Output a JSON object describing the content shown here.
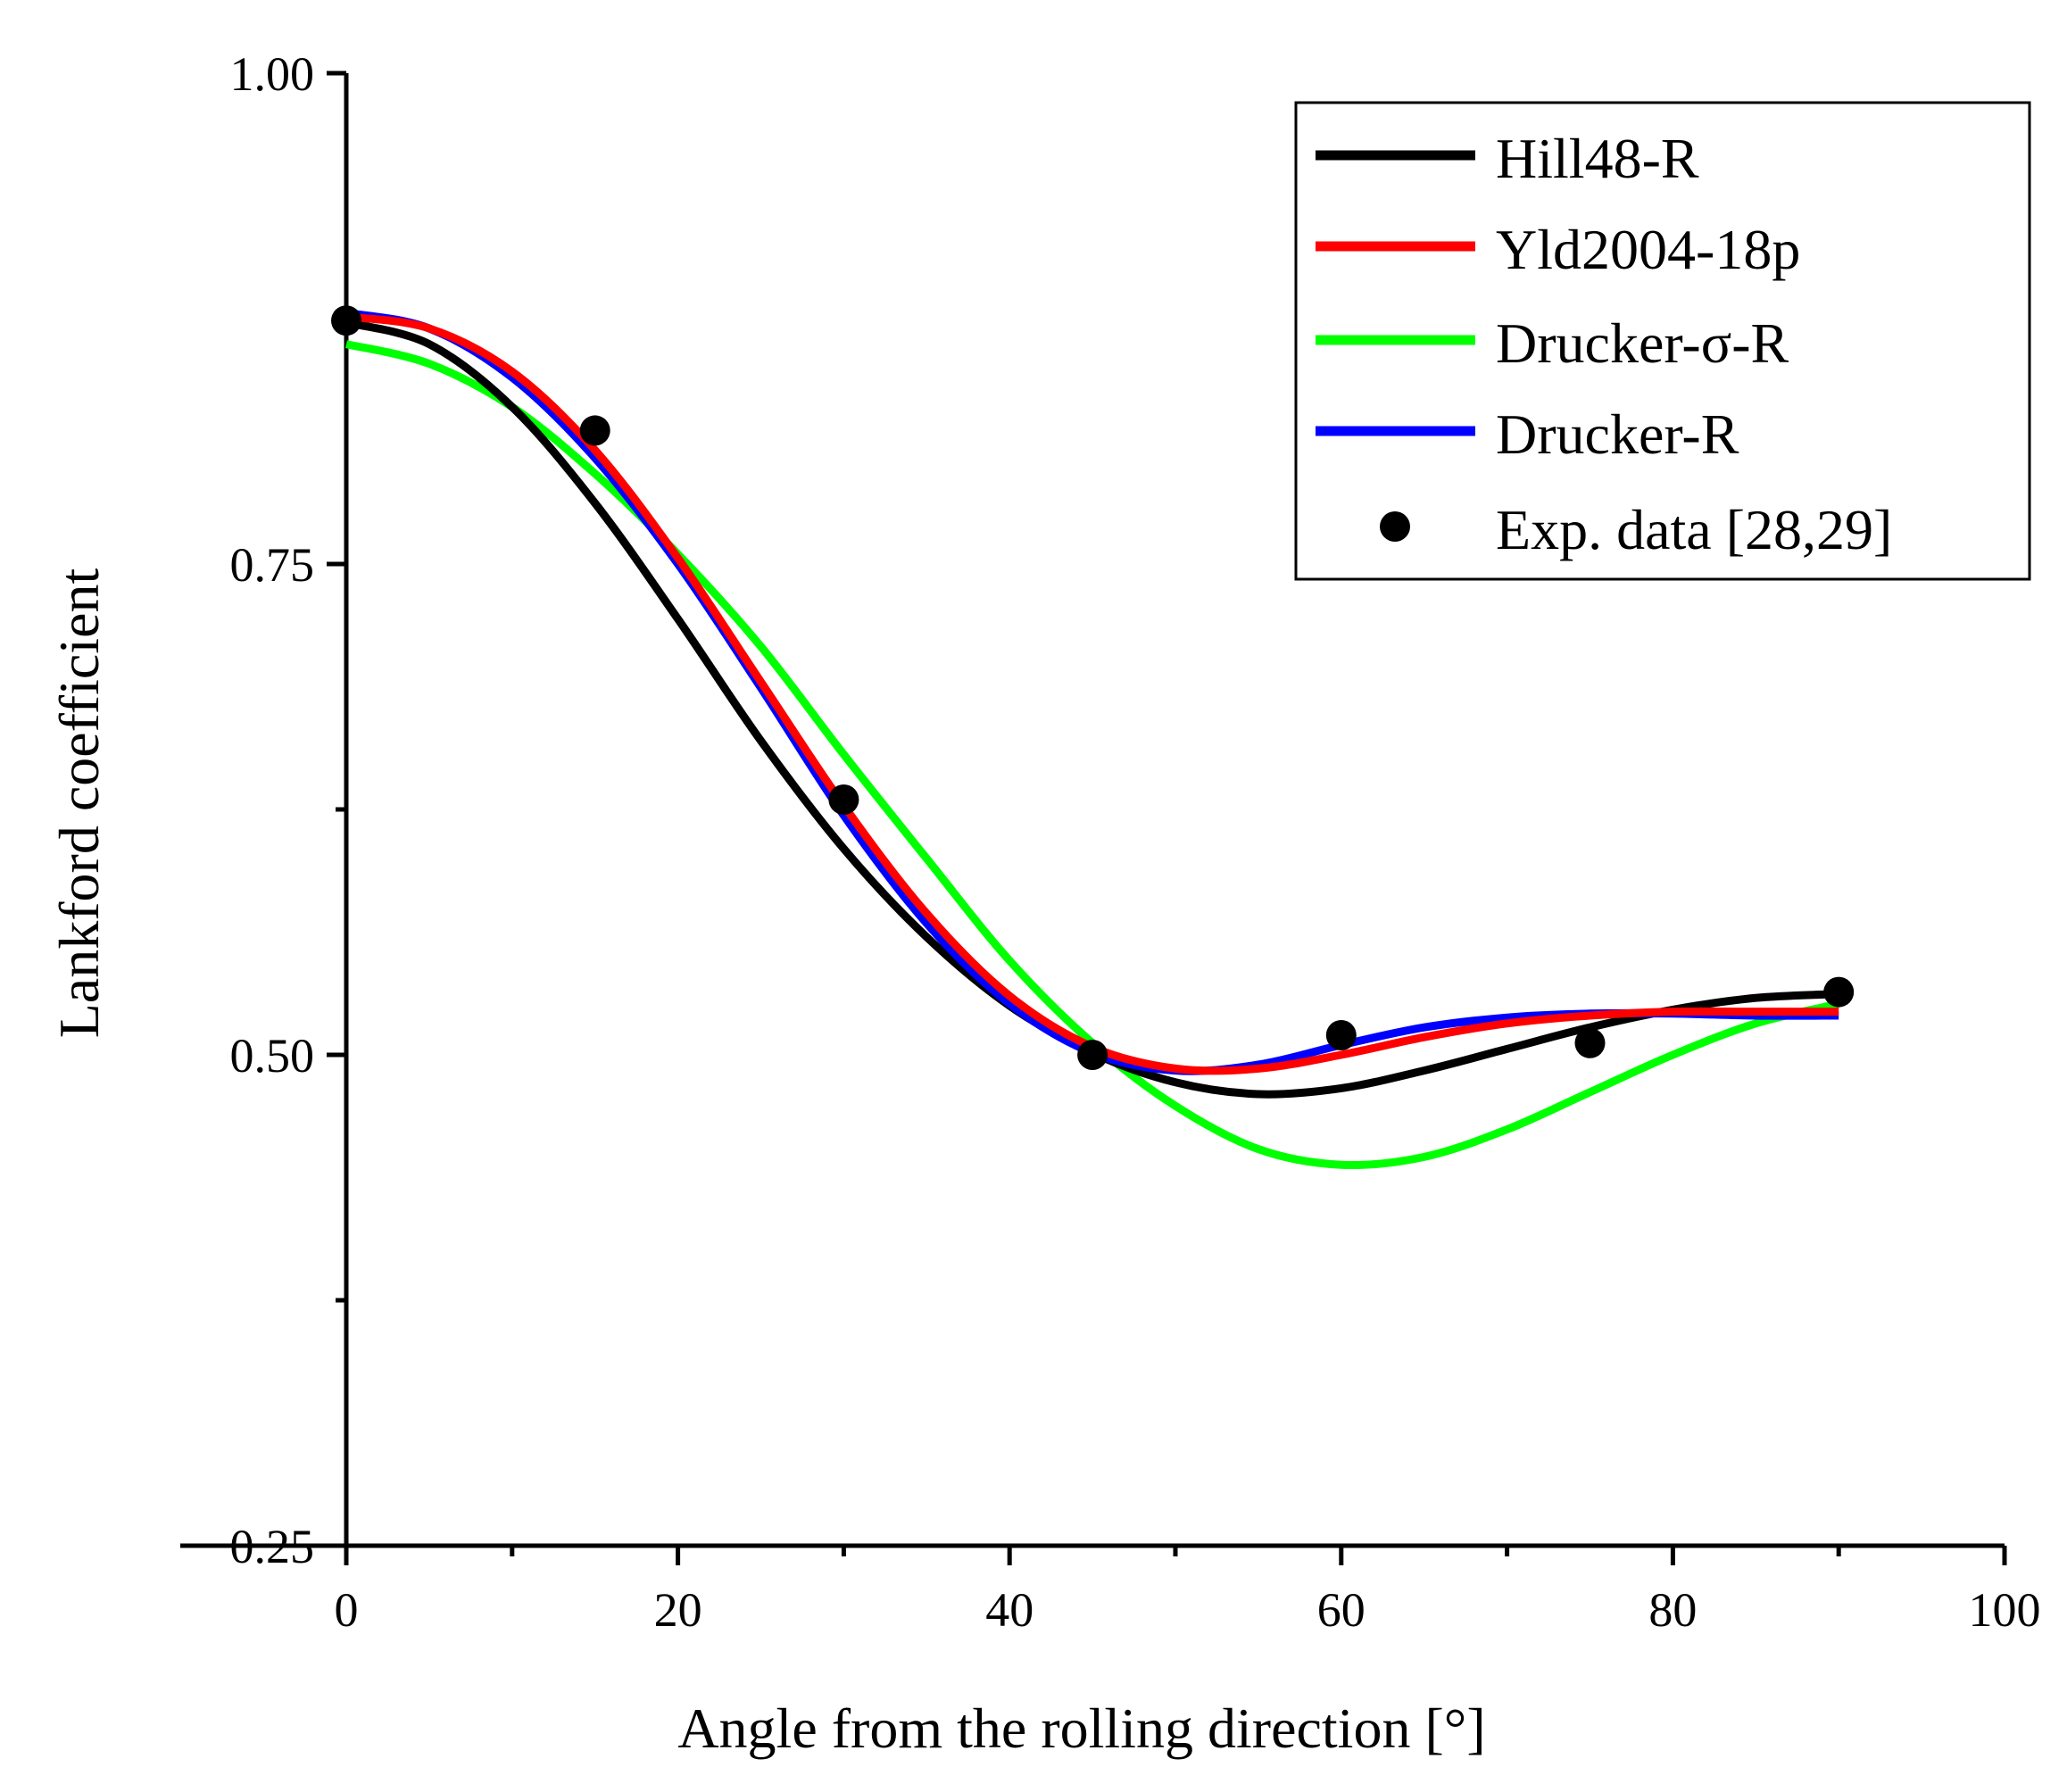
{
  "chart_data": {
    "type": "line",
    "title": "",
    "xlabel": "Angle from the rolling direction [°]",
    "ylabel": "Lankford coefficient",
    "xlim": [
      -10,
      100
    ],
    "ylim": [
      0.25,
      1.0
    ],
    "xticks": [
      0,
      20,
      40,
      60,
      80,
      100
    ],
    "xtick_labels": [
      "0",
      "20",
      "40",
      "60",
      "80",
      "100"
    ],
    "xminor_ticks": [
      10,
      30,
      50,
      70,
      90
    ],
    "yticks": [
      0.25,
      0.5,
      0.75,
      1.0
    ],
    "ytick_labels": [
      "0.25",
      "0.50",
      "0.75",
      "1.00"
    ],
    "yminor_ticks": [
      0.375,
      0.625,
      0.875
    ],
    "grid": false,
    "legend_position": "top-right",
    "series": [
      {
        "name": "Hill48-R",
        "kind": "line",
        "color": "#000000",
        "x": [
          0,
          5,
          10,
          15,
          20,
          25,
          30,
          35,
          40,
          45,
          50,
          55,
          60,
          65,
          70,
          75,
          80,
          85,
          90
        ],
        "y": [
          0.873,
          0.862,
          0.83,
          0.781,
          0.722,
          0.66,
          0.605,
          0.56,
          0.525,
          0.501,
          0.486,
          0.48,
          0.483,
          0.492,
          0.503,
          0.514,
          0.523,
          0.529,
          0.531
        ]
      },
      {
        "name": "Yld2004-18p",
        "kind": "line",
        "color": "#ff0000",
        "x": [
          0,
          5,
          10,
          15,
          20,
          25,
          30,
          35,
          40,
          45,
          50,
          55,
          60,
          65,
          70,
          75,
          80,
          85,
          90
        ],
        "y": [
          0.876,
          0.87,
          0.848,
          0.808,
          0.753,
          0.69,
          0.627,
          0.572,
          0.53,
          0.504,
          0.493,
          0.493,
          0.5,
          0.509,
          0.516,
          0.52,
          0.522,
          0.522,
          0.522
        ]
      },
      {
        "name": "Drucker-σ-R",
        "kind": "line",
        "color": "#00ff00",
        "x": [
          0,
          5,
          10,
          15,
          20,
          25,
          30,
          35,
          40,
          45,
          50,
          55,
          60,
          65,
          70,
          75,
          80,
          85,
          90
        ],
        "y": [
          0.862,
          0.852,
          0.83,
          0.796,
          0.755,
          0.708,
          0.653,
          0.6,
          0.548,
          0.506,
          0.474,
          0.452,
          0.444,
          0.448,
          0.462,
          0.481,
          0.5,
          0.516,
          0.526
        ]
      },
      {
        "name": "Drucker-R",
        "kind": "line",
        "color": "#0000ff",
        "x": [
          0,
          5,
          10,
          15,
          20,
          25,
          30,
          35,
          40,
          45,
          50,
          55,
          60,
          65,
          70,
          75,
          80,
          85,
          90
        ],
        "y": [
          0.878,
          0.87,
          0.845,
          0.804,
          0.75,
          0.687,
          0.622,
          0.567,
          0.526,
          0.501,
          0.492,
          0.495,
          0.505,
          0.514,
          0.519,
          0.521,
          0.521,
          0.52,
          0.52
        ]
      },
      {
        "name": "Exp. data [28,29]",
        "kind": "scatter",
        "color": "#000000",
        "x": [
          0,
          15,
          30,
          45,
          60,
          75,
          90
        ],
        "y": [
          0.874,
          0.818,
          0.63,
          0.5,
          0.51,
          0.506,
          0.532
        ]
      }
    ]
  }
}
